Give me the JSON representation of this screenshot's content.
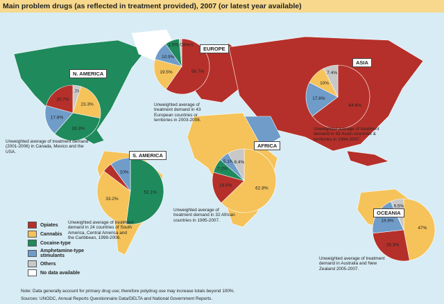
{
  "title": "Main problem drugs (as reflected in treatment provided), 2007 (or latest year available)",
  "legend": {
    "items": [
      {
        "name": "Opiates",
        "color": "#b5302a"
      },
      {
        "name": "Cannabis",
        "color": "#f5c35a"
      },
      {
        "name": "Cocaine-type",
        "color": "#1f8a5c"
      },
      {
        "name": "Amphetamine-type stimulants",
        "color": "#6f9cc9"
      },
      {
        "name": "Others",
        "color": "#c8c8c8"
      },
      {
        "name": "No data available",
        "color": "#ffffff"
      }
    ]
  },
  "regions": [
    {
      "name": "N. AMERICA",
      "note": "Unweighted average of treatment demand (2001-2006) in Canada, Mexico and the USA.",
      "slices": [
        {
          "value": 4.7,
          "label": "4.7%",
          "color": "#c8c8c8"
        },
        {
          "value": 23.3,
          "label": "23.3%",
          "color": "#f5c35a"
        },
        {
          "value": 33.3,
          "label": "33.3%",
          "color": "#1f8a5c"
        },
        {
          "value": 17.8,
          "label": "17.8%",
          "color": "#6f9cc9"
        },
        {
          "value": 20.7,
          "label": "20.7%",
          "color": "#b5302a"
        }
      ]
    },
    {
      "name": "EUROPE",
      "note": "Unweighted average of treatment demand in 43 European countries or territories in 2003-2008.",
      "slices": [
        {
          "value": 59.7,
          "label": "59.7%",
          "color": "#b5302a"
        },
        {
          "value": 19.5,
          "label": "19.5%",
          "color": "#f5c35a"
        },
        {
          "value": 10.9,
          "label": "10.9%",
          "color": "#6f9cc9"
        },
        {
          "value": 8.4,
          "color": "#1f8a5c"
        },
        {
          "value": 1.5,
          "label": "1.5% Others",
          "color": "#c8c8c8"
        }
      ]
    },
    {
      "name": "ASIA",
      "note": "Unweighted average of treatment demand in 43 Asian countries & territories in 1994-2007.",
      "slices": [
        {
          "value": 64.6,
          "label": "64.6%",
          "color": "#b5302a"
        },
        {
          "value": 17.8,
          "label": "17.8%",
          "color": "#6f9cc9"
        },
        {
          "value": 10,
          "label": "10%",
          "color": "#f5c35a"
        },
        {
          "value": 7.4,
          "label": "7.4%",
          "color": "#c8c8c8"
        }
      ]
    },
    {
      "name": "S. AMERICA",
      "note": "Unweighted average of treatment demand in 24 countries of South America, Central America and the Caribbean, 1998-2006.",
      "slices": [
        {
          "value": 52.1,
          "label": "52.1%",
          "color": "#1f8a5c"
        },
        {
          "value": 33.2,
          "label": "33.2%",
          "color": "#f5c35a"
        },
        {
          "value": 4.7,
          "color": "#b5302a"
        },
        {
          "value": 10,
          "label": "10%",
          "color": "#6f9cc9"
        }
      ]
    },
    {
      "name": "AFRICA",
      "note": "Unweighted average of treatment demand in 32 African countries in 1995-2007.",
      "slices": [
        {
          "value": 62.8,
          "label": "62.8%",
          "color": "#f5c35a"
        },
        {
          "value": 16.5,
          "label": "16.5%",
          "color": "#b5302a"
        },
        {
          "value": 7.2,
          "label": "7.2%",
          "color": "#1f8a5c"
        },
        {
          "value": 5.1,
          "label": "5.1%",
          "color": "#6f9cc9"
        },
        {
          "value": 8.4,
          "label": "8.4%",
          "color": "#c8c8c8"
        }
      ]
    },
    {
      "name": "OCEANIA",
      "note": "Unweighted average of treatment demand in Australia and New Zealand 2005-2007.",
      "slices": [
        {
          "value": 47,
          "label": "47%",
          "color": "#f5c35a"
        },
        {
          "value": 26.3,
          "label": "26.3%",
          "color": "#b5302a"
        },
        {
          "value": 19.8,
          "label": "19.8%",
          "color": "#6f9cc9"
        },
        {
          "value": 0.4,
          "color": "#1f8a5c"
        },
        {
          "value": 6.5,
          "label": "6.5%",
          "color": "#c8c8c8"
        }
      ]
    }
  ],
  "footnote": "Note: Data generally account for primary drug use; therefore polydrug use may increase totals beyond 100%.",
  "sources": "Sources: UNODC, Annual Reports Questionnaire Data/DELTA and National Government Reports."
}
